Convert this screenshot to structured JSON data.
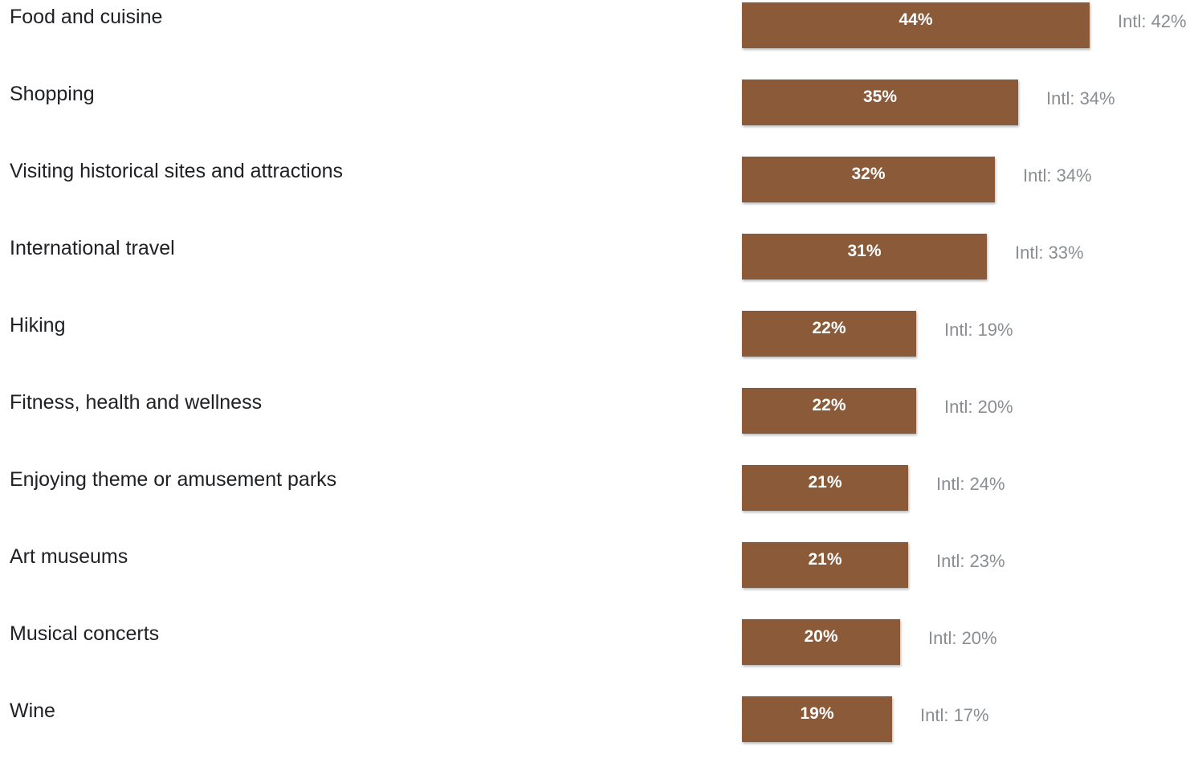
{
  "chart_data": {
    "type": "bar",
    "orientation": "horizontal",
    "categories": [
      "Food and cuisine",
      "Shopping",
      "Visiting historical sites and attractions",
      "International travel",
      "Hiking",
      "Fitness, health and wellness",
      "Enjoying theme or amusement parks",
      "Art museums",
      "Musical concerts",
      "Wine"
    ],
    "values": [
      44,
      35,
      32,
      31,
      22,
      22,
      21,
      21,
      20,
      19
    ],
    "value_labels": [
      "44%",
      "35%",
      "32%",
      "31%",
      "22%",
      "22%",
      "21%",
      "21%",
      "20%",
      "19%"
    ],
    "comparison_values": [
      42,
      34,
      34,
      33,
      19,
      20,
      24,
      23,
      20,
      17
    ],
    "comparison_labels": [
      "Intl: 42%",
      "Intl: 34%",
      "Intl: 34%",
      "Intl: 33%",
      "Intl: 19%",
      "Intl: 20%",
      "Intl: 24%",
      "Intl: 23%",
      "Intl: 20%",
      "Intl: 17%"
    ],
    "unit": "%",
    "xlim": [
      0,
      44
    ],
    "grid": false,
    "colors": {
      "bar": "#8b5a38",
      "bar_label": "#ffffff",
      "category_label": "#202124",
      "comparison_label": "#8a8d91"
    }
  }
}
